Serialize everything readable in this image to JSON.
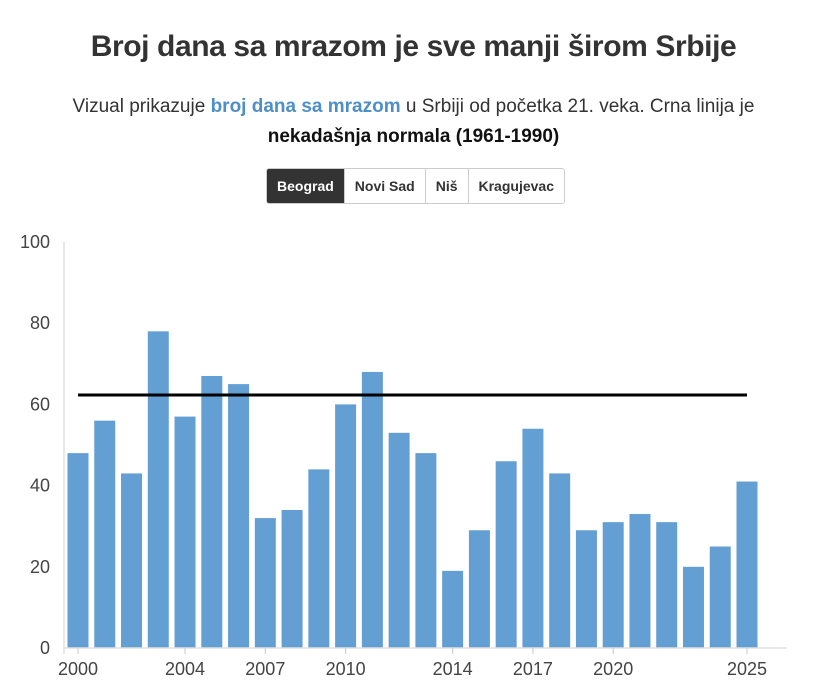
{
  "title": "Broj dana sa mrazom je sve manji širom Srbije",
  "subtitle": {
    "part1": "Vizual prikazuje ",
    "highlight": "broj dana sa mrazom",
    "part2": " u Srbiji od početka 21. veka. Crna linija je ",
    "emphasis": "nekadašnja normala (1961-1990)"
  },
  "tabs": [
    {
      "label": "Beograd",
      "active": true
    },
    {
      "label": "Novi Sad",
      "active": false
    },
    {
      "label": "Niš",
      "active": false
    },
    {
      "label": "Kragujevac",
      "active": false
    }
  ],
  "colors": {
    "bar": "#649fd4",
    "normal_line": "#000000",
    "highlight": "#4f8fc8"
  },
  "chart_data": {
    "type": "bar",
    "categories": [
      2000,
      2001,
      2002,
      2003,
      2004,
      2005,
      2006,
      2007,
      2008,
      2009,
      2010,
      2011,
      2012,
      2013,
      2014,
      2015,
      2016,
      2017,
      2018,
      2019,
      2020,
      2021,
      2022,
      2023,
      2024,
      2025
    ],
    "values": [
      48,
      56,
      43,
      78,
      57,
      67,
      65,
      32,
      34,
      44,
      60,
      68,
      53,
      48,
      19,
      29,
      46,
      54,
      43,
      29,
      31,
      33,
      31,
      20,
      25,
      41
    ],
    "reference_line": 62.3,
    "ylim": [
      0,
      100
    ],
    "yticks": [
      0,
      20,
      40,
      60,
      80,
      100
    ],
    "xticks": [
      2000,
      2004,
      2007,
      2010,
      2014,
      2017,
      2020,
      2025
    ],
    "grid": false
  }
}
